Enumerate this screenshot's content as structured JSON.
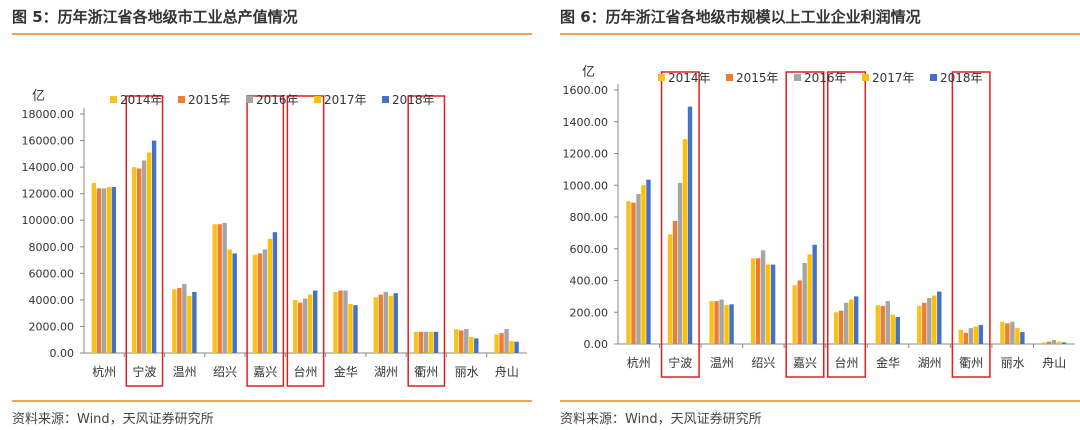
{
  "colors": {
    "2014年": "#f7c21f",
    "2015年": "#ed7d31",
    "2016年": "#a5a5a5",
    "2017年": "#ffc000",
    "2018年": "#4472c4",
    "highlight": "#e02020"
  },
  "chart_data": [
    {
      "type": "bar",
      "title": "图 5：历年浙江省各地级市工业总产值情况",
      "source": "资料来源：Wind，天风证券研究所",
      "unit_label": "亿",
      "categories": [
        "杭州",
        "宁波",
        "温州",
        "绍兴",
        "嘉兴",
        "台州",
        "金华",
        "湖州",
        "衢州",
        "丽水",
        "舟山"
      ],
      "highlighted": [
        "宁波",
        "嘉兴",
        "台州",
        "衢州"
      ],
      "ylim": [
        0,
        18000
      ],
      "yticks": [
        0,
        2000,
        4000,
        6000,
        8000,
        10000,
        12000,
        14000,
        16000,
        18000
      ],
      "ytick_labels": [
        "0.00",
        "2000.00",
        "4000.00",
        "6000.00",
        "8000.00",
        "10000.00",
        "12000.00",
        "14000.00",
        "16000.00",
        "18000.00"
      ],
      "legend_position": "top",
      "series": [
        {
          "name": "2014年",
          "values": [
            12800,
            14000,
            4800,
            9700,
            7400,
            4000,
            4600,
            4200,
            1600,
            1800,
            1400
          ]
        },
        {
          "name": "2015年",
          "values": [
            12400,
            13900,
            4900,
            9700,
            7500,
            3800,
            4700,
            4400,
            1600,
            1700,
            1500
          ]
        },
        {
          "name": "2016年",
          "values": [
            12400,
            14500,
            5200,
            9800,
            7800,
            4100,
            4700,
            4600,
            1600,
            1800,
            1800
          ]
        },
        {
          "name": "2017年",
          "values": [
            12500,
            15100,
            4300,
            7800,
            8600,
            4400,
            3700,
            4300,
            1600,
            1200,
            900
          ]
        },
        {
          "name": "2018年",
          "values": [
            12500,
            16000,
            4600,
            7500,
            9100,
            4700,
            3600,
            4500,
            1600,
            1100,
            850
          ]
        }
      ]
    },
    {
      "type": "bar",
      "title": "图 6：历年浙江省各地级市规模以上工业企业利润情况",
      "source": "资料来源：Wind，天风证券研究所",
      "unit_label": "亿",
      "categories": [
        "杭州",
        "宁波",
        "温州",
        "绍兴",
        "嘉兴",
        "台州",
        "金华",
        "湖州",
        "衢州",
        "丽水",
        "舟山"
      ],
      "highlighted": [
        "宁波",
        "嘉兴",
        "台州",
        "衢州"
      ],
      "ylim": [
        0,
        1600
      ],
      "yticks": [
        0,
        200,
        400,
        600,
        800,
        1000,
        1200,
        1400,
        1600
      ],
      "ytick_labels": [
        "0.00",
        "200.00",
        "400.00",
        "600.00",
        "800.00",
        "1000.00",
        "1200.00",
        "1400.00",
        "1600.00"
      ],
      "legend_position": "top",
      "series": [
        {
          "name": "2014年",
          "values": [
            900,
            690,
            270,
            540,
            370,
            200,
            245,
            240,
            90,
            140,
            10
          ]
        },
        {
          "name": "2015年",
          "values": [
            890,
            775,
            270,
            540,
            400,
            210,
            240,
            260,
            70,
            130,
            15
          ]
        },
        {
          "name": "2016年",
          "values": [
            945,
            1015,
            280,
            590,
            510,
            260,
            270,
            290,
            100,
            140,
            25
          ]
        },
        {
          "name": "2017年",
          "values": [
            1000,
            1290,
            245,
            500,
            565,
            280,
            185,
            305,
            110,
            100,
            15
          ]
        },
        {
          "name": "2018年",
          "values": [
            1035,
            1495,
            250,
            500,
            625,
            300,
            170,
            330,
            120,
            75,
            10
          ]
        }
      ]
    }
  ]
}
